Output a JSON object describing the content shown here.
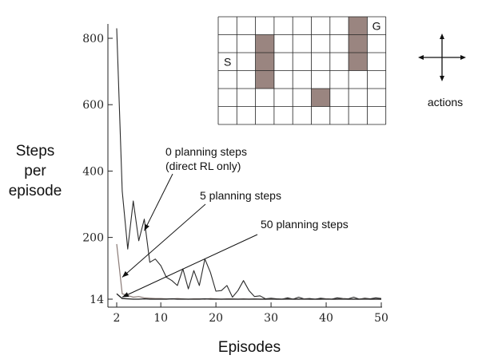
{
  "chart_data": {
    "type": "line",
    "xlabel": "Episodes",
    "ylabel": [
      "Steps",
      "per",
      "episode"
    ],
    "xticks": [
      2,
      10,
      20,
      30,
      40,
      50
    ],
    "yticks": [
      14,
      200,
      400,
      600,
      800
    ],
    "xlim": [
      2,
      50
    ],
    "ylim": [
      14,
      830
    ],
    "grid": false,
    "series": [
      {
        "name": "0 planning steps (direct RL only)",
        "x": [
          2,
          3,
          4,
          5,
          6,
          7,
          8,
          9,
          10,
          11,
          12,
          13,
          14,
          15,
          16,
          17,
          18,
          19,
          20,
          21,
          22,
          23,
          24,
          25,
          26,
          27,
          28,
          29,
          30,
          31,
          32,
          33,
          34,
          35,
          36,
          37,
          38,
          39,
          40,
          41,
          42,
          43,
          44,
          45,
          46,
          47,
          48,
          49,
          50
        ],
        "values": [
          830,
          340,
          165,
          310,
          190,
          255,
          125,
          135,
          115,
          80,
          70,
          55,
          105,
          45,
          100,
          55,
          135,
          95,
          38,
          40,
          55,
          20,
          40,
          70,
          40,
          22,
          24,
          15,
          17,
          15,
          14,
          18,
          14,
          20,
          15,
          16,
          14,
          17,
          15,
          14,
          18,
          16,
          15,
          20,
          14,
          17,
          15,
          18,
          16
        ]
      },
      {
        "name": "5 planning steps",
        "x": [
          2,
          3,
          4,
          5,
          6,
          7,
          8,
          9,
          10,
          11,
          12,
          13,
          14,
          15,
          16,
          17,
          18,
          19,
          20,
          21,
          22,
          23,
          24,
          25,
          26,
          27,
          28,
          29,
          30,
          31,
          32,
          33,
          34,
          35,
          36,
          37,
          38,
          39,
          40,
          41,
          42,
          43,
          44,
          45,
          46,
          47,
          48,
          49,
          50
        ],
        "values": [
          180,
          30,
          25,
          20,
          22,
          18,
          17,
          16,
          16,
          15,
          15,
          16,
          15,
          14,
          15,
          15,
          14,
          16,
          15,
          14,
          15,
          15,
          14,
          15,
          14,
          15,
          14,
          14,
          15,
          14,
          14,
          15,
          14,
          14,
          15,
          14,
          14,
          14,
          15,
          14,
          14,
          15,
          14,
          14,
          14,
          15,
          14,
          14,
          14
        ]
      },
      {
        "name": "50 planning steps",
        "x": [
          2,
          3,
          4,
          5,
          6,
          7,
          8,
          9,
          10,
          11,
          12,
          13,
          14,
          15,
          16,
          17,
          18,
          19,
          20,
          21,
          22,
          23,
          24,
          25,
          26,
          27,
          28,
          29,
          30,
          31,
          32,
          33,
          34,
          35,
          36,
          37,
          38,
          39,
          40,
          41,
          42,
          43,
          44,
          45,
          46,
          47,
          48,
          49,
          50
        ],
        "values": [
          30,
          16,
          15,
          14,
          14,
          15,
          14,
          14,
          14,
          14,
          15,
          14,
          14,
          14,
          14,
          14,
          15,
          14,
          14,
          14,
          14,
          14,
          14,
          14,
          14,
          14,
          14,
          14,
          14,
          14,
          14,
          14,
          14,
          14,
          14,
          14,
          14,
          14,
          14,
          14,
          14,
          14,
          14,
          14,
          14,
          14,
          14,
          14,
          14
        ]
      }
    ],
    "annotations": [
      {
        "lines": [
          "0 planning steps",
          "(direct RL only)"
        ],
        "points_to": {
          "x": 7,
          "y": 220
        }
      },
      {
        "lines": [
          "5 planning steps"
        ],
        "points_to": {
          "x": 3,
          "y": 80
        }
      },
      {
        "lines": [
          "50 planning steps"
        ],
        "points_to": {
          "x": 3,
          "y": 20
        }
      }
    ]
  },
  "gridworld": {
    "rows": 6,
    "cols": 9,
    "start": {
      "row": 2,
      "col": 0,
      "label": "S"
    },
    "goal": {
      "row": 0,
      "col": 8,
      "label": "G"
    },
    "obstacles": [
      [
        1,
        2
      ],
      [
        2,
        2
      ],
      [
        3,
        2
      ],
      [
        4,
        5
      ],
      [
        0,
        7
      ],
      [
        1,
        7
      ],
      [
        2,
        7
      ]
    ],
    "obstacle_color": "#9a8580",
    "actions_label": "actions"
  },
  "colors": {
    "series0": "#2a2a2a",
    "series1": "#8a7a76",
    "series2": "#1a1a1a",
    "axis": "#222222"
  }
}
